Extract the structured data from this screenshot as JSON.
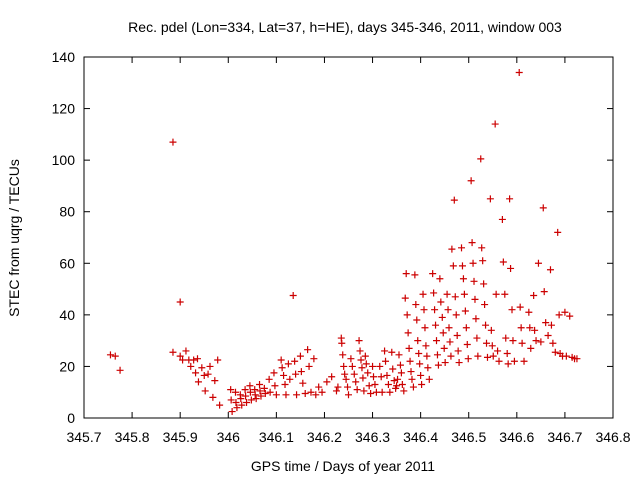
{
  "chart_data": {
    "type": "scatter",
    "title": "Rec. pdel (Lon=334, Lat=37, h=HE), days 345-346, 2011, window 003",
    "xlabel": "GPS time / Days of year 2011",
    "ylabel": "STEC from uqrg / TECUs",
    "xlim": [
      345.7,
      346.8
    ],
    "ylim": [
      0,
      140
    ],
    "x_ticks": [
      345.7,
      345.8,
      345.9,
      346.0,
      346.1,
      346.2,
      346.3,
      346.4,
      346.5,
      346.6,
      346.7,
      346.8
    ],
    "x_tick_labels": [
      "345.7",
      "345.8",
      "345.9",
      "346",
      "346.1",
      "346.2",
      "346.3",
      "346.4",
      "346.5",
      "346.6",
      "346.7",
      "346.8"
    ],
    "y_ticks": [
      0,
      20,
      40,
      60,
      80,
      100,
      120,
      140
    ],
    "y_tick_labels": [
      "0",
      "20",
      "40",
      "60",
      "80",
      "100",
      "120",
      "140"
    ],
    "grid": false,
    "legend": "none",
    "marker": "+",
    "marker_color": "#cc0000",
    "points": [
      [
        345.755,
        24.5
      ],
      [
        345.765,
        24
      ],
      [
        345.775,
        18.5
      ],
      [
        345.885,
        107
      ],
      [
        345.885,
        25.5
      ],
      [
        345.9,
        45
      ],
      [
        345.9,
        24
      ],
      [
        345.905,
        22.5
      ],
      [
        345.912,
        26
      ],
      [
        345.918,
        22.5
      ],
      [
        345.922,
        20
      ],
      [
        345.928,
        22.5
      ],
      [
        345.932,
        17.5
      ],
      [
        345.936,
        23
      ],
      [
        345.938,
        14
      ],
      [
        345.945,
        19.5
      ],
      [
        345.95,
        16.5
      ],
      [
        345.952,
        10.5
      ],
      [
        345.958,
        17
      ],
      [
        345.962,
        20
      ],
      [
        345.968,
        8
      ],
      [
        345.972,
        14.5
      ],
      [
        345.978,
        22.5
      ],
      [
        345.982,
        5
      ],
      [
        346.005,
        11
      ],
      [
        346.006,
        7
      ],
      [
        346.008,
        2.5
      ],
      [
        346.015,
        10
      ],
      [
        346.016,
        6
      ],
      [
        346.018,
        4
      ],
      [
        346.025,
        9
      ],
      [
        346.026,
        7.5
      ],
      [
        346.028,
        5
      ],
      [
        346.035,
        11
      ],
      [
        346.036,
        8.5
      ],
      [
        346.038,
        6
      ],
      [
        346.045,
        12.5
      ],
      [
        346.046,
        10
      ],
      [
        346.048,
        7
      ],
      [
        346.055,
        11
      ],
      [
        346.056,
        9
      ],
      [
        346.058,
        7.5
      ],
      [
        346.065,
        13
      ],
      [
        346.066,
        10.5
      ],
      [
        346.068,
        8.5
      ],
      [
        346.075,
        11.5
      ],
      [
        346.077,
        9.5
      ],
      [
        346.085,
        15
      ],
      [
        346.087,
        10
      ],
      [
        346.095,
        17.5
      ],
      [
        346.097,
        12.5
      ],
      [
        346.1,
        9
      ],
      [
        346.11,
        22.5
      ],
      [
        346.112,
        19.5
      ],
      [
        346.115,
        16.5
      ],
      [
        346.118,
        13
      ],
      [
        346.12,
        9
      ],
      [
        346.125,
        21
      ],
      [
        346.128,
        15
      ],
      [
        346.135,
        47.5
      ],
      [
        346.138,
        22
      ],
      [
        346.14,
        17
      ],
      [
        346.142,
        9
      ],
      [
        346.15,
        24
      ],
      [
        346.152,
        18
      ],
      [
        346.155,
        13.5
      ],
      [
        346.16,
        9.5
      ],
      [
        346.165,
        26.5
      ],
      [
        346.168,
        20
      ],
      [
        346.172,
        10
      ],
      [
        346.178,
        23
      ],
      [
        346.182,
        9
      ],
      [
        346.188,
        12
      ],
      [
        346.195,
        10
      ],
      [
        346.205,
        14
      ],
      [
        346.215,
        16
      ],
      [
        346.225,
        10.5
      ],
      [
        346.228,
        12
      ],
      [
        346.235,
        31
      ],
      [
        346.236,
        29
      ],
      [
        346.238,
        24.5
      ],
      [
        346.24,
        20
      ],
      [
        346.242,
        17
      ],
      [
        346.245,
        15
      ],
      [
        346.248,
        12
      ],
      [
        346.25,
        9
      ],
      [
        346.255,
        23
      ],
      [
        346.258,
        20
      ],
      [
        346.262,
        17
      ],
      [
        346.265,
        14
      ],
      [
        346.268,
        11
      ],
      [
        346.272,
        30
      ],
      [
        346.274,
        26
      ],
      [
        346.276,
        22.5
      ],
      [
        346.278,
        19.5
      ],
      [
        346.28,
        15.5
      ],
      [
        346.282,
        10.5
      ],
      [
        346.285,
        24
      ],
      [
        346.287,
        21
      ],
      [
        346.29,
        17.5
      ],
      [
        346.293,
        12.5
      ],
      [
        346.296,
        9.5
      ],
      [
        346.3,
        20
      ],
      [
        346.302,
        16
      ],
      [
        346.305,
        13
      ],
      [
        346.308,
        10
      ],
      [
        346.315,
        20
      ],
      [
        346.318,
        16
      ],
      [
        346.32,
        10
      ],
      [
        346.325,
        26
      ],
      [
        346.327,
        22
      ],
      [
        346.33,
        16.5
      ],
      [
        346.333,
        13
      ],
      [
        346.336,
        10
      ],
      [
        346.34,
        25.5
      ],
      [
        346.342,
        19
      ],
      [
        346.345,
        14.5
      ],
      [
        346.348,
        11.5
      ],
      [
        346.35,
        12.5
      ],
      [
        346.352,
        15
      ],
      [
        346.355,
        24.5
      ],
      [
        346.358,
        20.5
      ],
      [
        346.36,
        17.5
      ],
      [
        346.362,
        13
      ],
      [
        346.365,
        10.5
      ],
      [
        346.368,
        46.5
      ],
      [
        346.37,
        56
      ],
      [
        346.372,
        40
      ],
      [
        346.374,
        33
      ],
      [
        346.376,
        27
      ],
      [
        346.378,
        22
      ],
      [
        346.38,
        18
      ],
      [
        346.382,
        15
      ],
      [
        346.385,
        12
      ],
      [
        346.388,
        55.5
      ],
      [
        346.39,
        44
      ],
      [
        346.392,
        38
      ],
      [
        346.394,
        30
      ],
      [
        346.396,
        25
      ],
      [
        346.398,
        21
      ],
      [
        346.4,
        16.5
      ],
      [
        346.402,
        13
      ],
      [
        346.405,
        48
      ],
      [
        346.407,
        42
      ],
      [
        346.409,
        35
      ],
      [
        346.411,
        28
      ],
      [
        346.413,
        24
      ],
      [
        346.415,
        19.5
      ],
      [
        346.418,
        15
      ],
      [
        346.425,
        56
      ],
      [
        346.427,
        48.5
      ],
      [
        346.429,
        42
      ],
      [
        346.431,
        36
      ],
      [
        346.433,
        30
      ],
      [
        346.435,
        24.5
      ],
      [
        346.437,
        20.5
      ],
      [
        346.44,
        54
      ],
      [
        346.442,
        45
      ],
      [
        346.445,
        39
      ],
      [
        346.447,
        33
      ],
      [
        346.449,
        27
      ],
      [
        346.451,
        21.5
      ],
      [
        346.455,
        48
      ],
      [
        346.457,
        42
      ],
      [
        346.459,
        35
      ],
      [
        346.461,
        29.5
      ],
      [
        346.463,
        24
      ],
      [
        346.465,
        65.5
      ],
      [
        346.468,
        59
      ],
      [
        346.47,
        84.5
      ],
      [
        346.472,
        47
      ],
      [
        346.474,
        40
      ],
      [
        346.476,
        32
      ],
      [
        346.478,
        26
      ],
      [
        346.48,
        21.5
      ],
      [
        346.485,
        66
      ],
      [
        346.487,
        59
      ],
      [
        346.489,
        54
      ],
      [
        346.491,
        48
      ],
      [
        346.493,
        41.5
      ],
      [
        346.495,
        35
      ],
      [
        346.497,
        28.5
      ],
      [
        346.499,
        23
      ],
      [
        346.505,
        92
      ],
      [
        346.507,
        68
      ],
      [
        346.509,
        60
      ],
      [
        346.511,
        53
      ],
      [
        346.513,
        46
      ],
      [
        346.515,
        38.5
      ],
      [
        346.517,
        31
      ],
      [
        346.519,
        24
      ],
      [
        346.525,
        100.5
      ],
      [
        346.527,
        66
      ],
      [
        346.529,
        61
      ],
      [
        346.531,
        52
      ],
      [
        346.533,
        44
      ],
      [
        346.535,
        36
      ],
      [
        346.537,
        29
      ],
      [
        346.539,
        23.5
      ],
      [
        346.545,
        85
      ],
      [
        346.547,
        34
      ],
      [
        346.549,
        28
      ],
      [
        346.551,
        24
      ],
      [
        346.555,
        114
      ],
      [
        346.557,
        48
      ],
      [
        346.56,
        26
      ],
      [
        346.563,
        22
      ],
      [
        346.57,
        77
      ],
      [
        346.572,
        60.5
      ],
      [
        346.575,
        48
      ],
      [
        346.577,
        31
      ],
      [
        346.58,
        25
      ],
      [
        346.582,
        21
      ],
      [
        346.585,
        85
      ],
      [
        346.587,
        58
      ],
      [
        346.59,
        42
      ],
      [
        346.592,
        30
      ],
      [
        346.595,
        22
      ],
      [
        346.605,
        134
      ],
      [
        346.607,
        43
      ],
      [
        346.609,
        35
      ],
      [
        346.611,
        29
      ],
      [
        346.615,
        22
      ],
      [
        346.625,
        41
      ],
      [
        346.627,
        35
      ],
      [
        346.629,
        27
      ],
      [
        346.635,
        47.5
      ],
      [
        346.637,
        34
      ],
      [
        346.64,
        30
      ],
      [
        346.645,
        60
      ],
      [
        346.65,
        29.5
      ],
      [
        346.655,
        81.5
      ],
      [
        346.657,
        49
      ],
      [
        346.66,
        37
      ],
      [
        346.665,
        32
      ],
      [
        346.67,
        57.5
      ],
      [
        346.672,
        36
      ],
      [
        346.675,
        29
      ],
      [
        346.68,
        25.5
      ],
      [
        346.685,
        72
      ],
      [
        346.688,
        40
      ],
      [
        346.69,
        25
      ],
      [
        346.695,
        24
      ],
      [
        346.7,
        41
      ],
      [
        346.703,
        24
      ],
      [
        346.71,
        39.5
      ],
      [
        346.715,
        23.5
      ],
      [
        346.72,
        23
      ],
      [
        346.725,
        23
      ]
    ]
  }
}
